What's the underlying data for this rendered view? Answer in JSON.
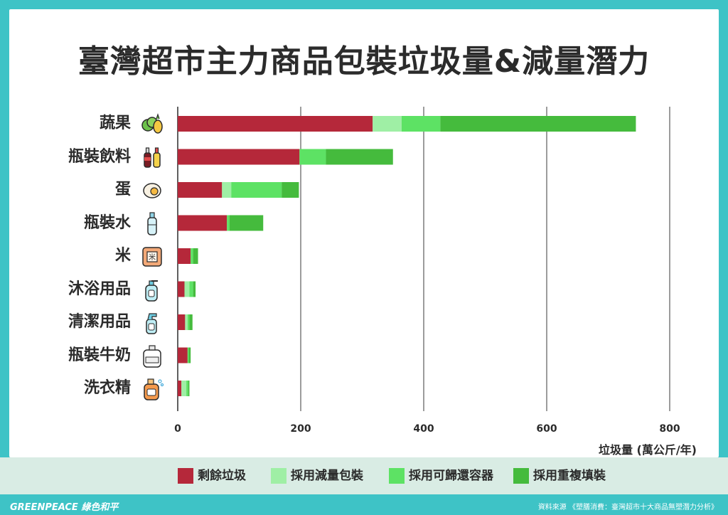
{
  "title": "臺灣超市主力商品包裝垃圾量&減量潛力",
  "chart_data": {
    "type": "bar",
    "orientation": "horizontal",
    "stacked": true,
    "categories": [
      "蔬果",
      "瓶裝飲料",
      "蛋",
      "瓶裝水",
      "米",
      "沐浴用品",
      "清潔用品",
      "瓶裝牛奶",
      "洗衣精"
    ],
    "series": [
      {
        "name": "剩餘垃圾",
        "color": "#b5283a",
        "values": [
          317,
          198,
          72,
          80,
          21,
          11,
          12,
          16,
          6
        ]
      },
      {
        "name": "採用減量包裝",
        "color": "#9fefa5",
        "values": [
          47,
          0,
          15,
          0,
          0,
          8,
          4,
          0,
          8
        ]
      },
      {
        "name": "採用可歸還容器",
        "color": "#5de264",
        "values": [
          63,
          43,
          82,
          4,
          4,
          6,
          3,
          2,
          3
        ]
      },
      {
        "name": "採用重複填裝",
        "color": "#45bb3d",
        "values": [
          318,
          109,
          28,
          55,
          8,
          4,
          5,
          3,
          2
        ]
      }
    ],
    "xticks": [
      0,
      200,
      400,
      600,
      800
    ],
    "xlim": [
      0,
      800
    ],
    "xlabel": "垃圾量 (萬公斤/年)",
    "grid": "vertical",
    "legend": "bottom"
  },
  "icons": [
    "vegetables-icon",
    "bottled-drinks-icon",
    "egg-icon",
    "water-bottle-icon",
    "rice-bag-icon",
    "shower-gel-icon",
    "spray-bottle-icon",
    "milk-jug-icon",
    "detergent-icon"
  ],
  "footer": {
    "logo": "GREENPEACE 綠色和平",
    "source": "資料來源 《塑膳消費：臺灣超市十大商品無塑潛力分析》"
  }
}
